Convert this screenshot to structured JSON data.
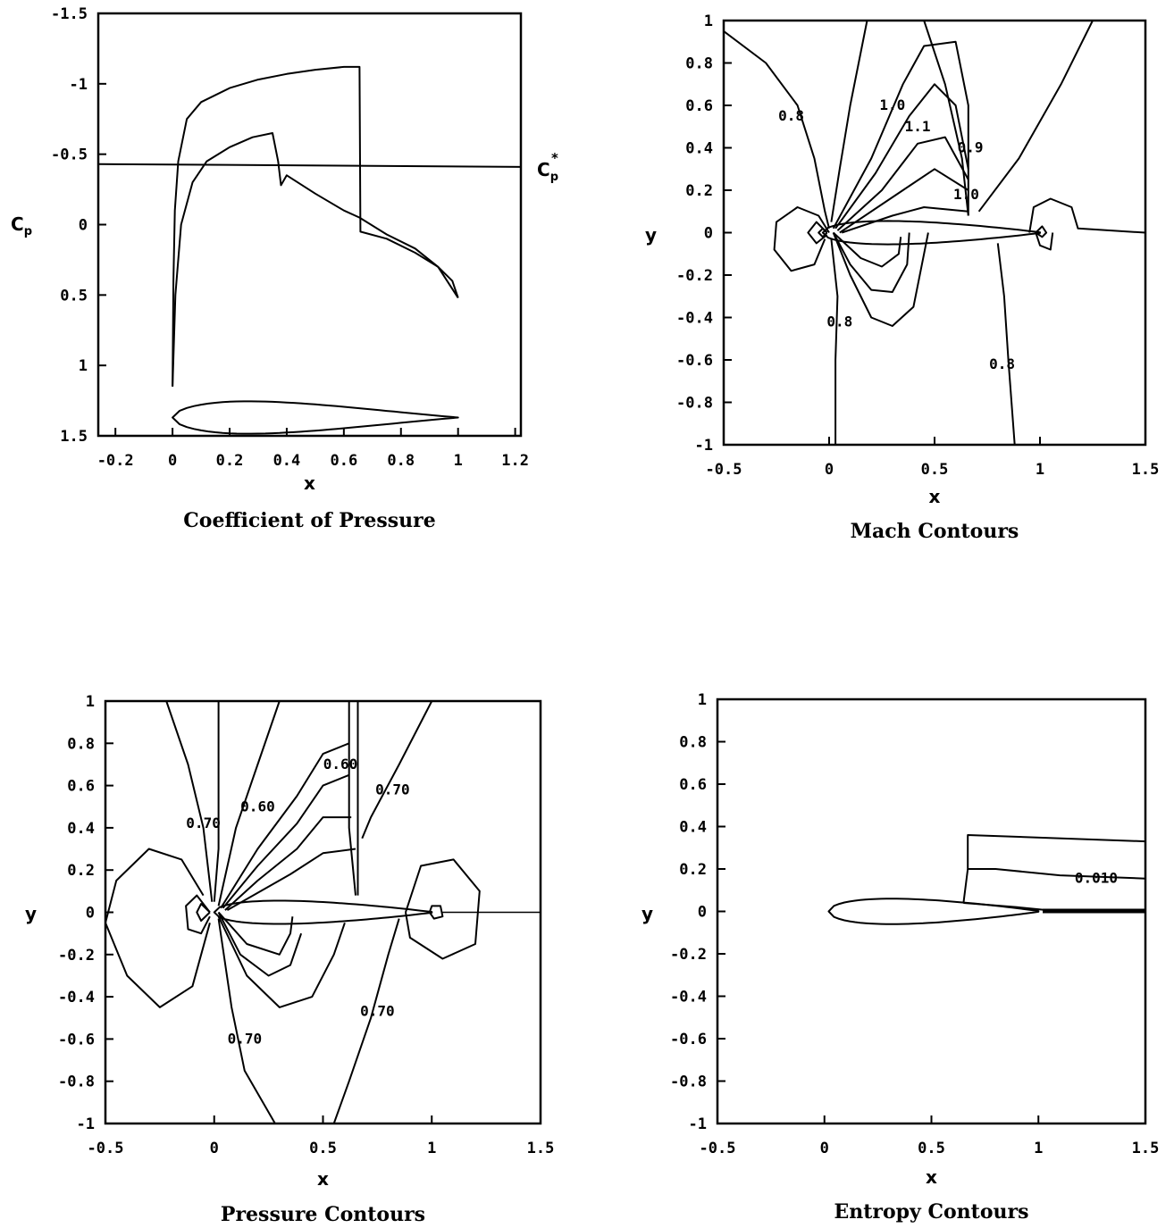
{
  "chart_data": [
    {
      "type": "line",
      "title": "Coefficient of Pressure",
      "xlabel": "x",
      "ylabel": "C",
      "ylabel_sub": "p",
      "xlim": [
        -0.26,
        1.22
      ],
      "ylim": [
        1.5,
        -1.5
      ],
      "xticks": [
        "-0.2",
        "0",
        "0.2",
        "0.4",
        "0.6",
        "0.8",
        "1",
        "1.2"
      ],
      "xtick_values": [
        -0.2,
        0,
        0.2,
        0.4,
        0.6,
        0.8,
        1,
        1.2
      ],
      "yticks": [
        "-1.5",
        "-1",
        "-0.5",
        "0",
        "0.5",
        "1",
        "1.5"
      ],
      "ytick_values": [
        -1.5,
        -1,
        -0.5,
        0,
        0.5,
        1,
        1.5
      ],
      "reference_line": {
        "label": "C",
        "label_sub": "p",
        "label_sup": "*",
        "y_start": -0.43,
        "y_end": -0.41
      },
      "series": [
        {
          "x": [
            0.0,
            0.003,
            0.008,
            0.02,
            0.05,
            0.1,
            0.2,
            0.3,
            0.4,
            0.5,
            0.6,
            0.655,
            0.658,
            0.75,
            0.85,
            0.93,
            0.98,
            1.0
          ],
          "y": [
            1.15,
            0.4,
            -0.1,
            -0.45,
            -0.75,
            -0.87,
            -0.97,
            -1.03,
            -1.07,
            -1.1,
            -1.12,
            -1.12,
            0.05,
            0.1,
            0.2,
            0.3,
            0.4,
            0.52
          ]
        },
        {
          "x": [
            0.0,
            0.01,
            0.03,
            0.07,
            0.12,
            0.2,
            0.28,
            0.35,
            0.37,
            0.38,
            0.4,
            0.5,
            0.6,
            0.655,
            0.75,
            0.85,
            0.93,
            1.0
          ],
          "y": [
            1.15,
            0.5,
            0.0,
            -0.3,
            -0.45,
            -0.55,
            -0.62,
            -0.65,
            -0.45,
            -0.28,
            -0.35,
            -0.22,
            -0.1,
            -0.05,
            0.07,
            0.17,
            0.3,
            0.52
          ]
        }
      ],
      "airfoil_inset": {
        "x_le": 0.0,
        "x_te": 1.0,
        "y_center": 1.37,
        "half_thickness": 0.12
      }
    },
    {
      "type": "contour",
      "title": "Mach Contours",
      "xlabel": "x",
      "ylabel": "y",
      "xlim": [
        -0.5,
        1.5
      ],
      "ylim": [
        -1,
        1
      ],
      "xticks": [
        "-0.5",
        "0",
        "0.5",
        "1",
        "1.5"
      ],
      "xtick_values": [
        -0.5,
        0,
        0.5,
        1,
        1.5
      ],
      "yticks": [
        "1",
        "0.8",
        "0.6",
        "0.4",
        "0.2",
        "0",
        "-0.2",
        "-0.4",
        "-0.6",
        "-0.8",
        "-1"
      ],
      "ytick_values": [
        1,
        0.8,
        0.6,
        0.4,
        0.2,
        0,
        -0.2,
        -0.4,
        -0.6,
        -0.8,
        -1
      ],
      "contour_labels": [
        {
          "text": "0.8",
          "x": -0.18,
          "y": 0.55
        },
        {
          "text": "1.0",
          "x": 0.3,
          "y": 0.6
        },
        {
          "text": "1.1",
          "x": 0.42,
          "y": 0.5
        },
        {
          "text": "0.9",
          "x": 0.67,
          "y": 0.4
        },
        {
          "text": "1.0",
          "x": 0.65,
          "y": 0.18
        },
        {
          "text": "0.8",
          "x": 0.05,
          "y": -0.42
        },
        {
          "text": "0.8",
          "x": 0.82,
          "y": -0.62
        }
      ]
    },
    {
      "type": "contour",
      "title": "Pressure Contours",
      "xlabel": "x",
      "ylabel": "y",
      "xlim": [
        -0.5,
        1.5
      ],
      "ylim": [
        -1,
        1
      ],
      "xticks": [
        "-0.5",
        "0",
        "0.5",
        "1",
        "1.5"
      ],
      "xtick_values": [
        -0.5,
        0,
        0.5,
        1,
        1.5
      ],
      "yticks": [
        "1",
        "0.8",
        "0.6",
        "0.4",
        "0.2",
        "0",
        "-0.2",
        "-0.4",
        "-0.6",
        "-0.8",
        "-1"
      ],
      "ytick_values": [
        1,
        0.8,
        0.6,
        0.4,
        0.2,
        0,
        -0.2,
        -0.4,
        -0.6,
        -0.8,
        -1
      ],
      "contour_labels": [
        {
          "text": "0.70",
          "x": -0.05,
          "y": 0.42
        },
        {
          "text": "0.60",
          "x": 0.2,
          "y": 0.5
        },
        {
          "text": "0.60",
          "x": 0.58,
          "y": 0.7
        },
        {
          "text": "0.70",
          "x": 0.82,
          "y": 0.58
        },
        {
          "text": "0.70",
          "x": 0.14,
          "y": -0.6
        },
        {
          "text": "0.70",
          "x": 0.75,
          "y": -0.47
        }
      ]
    },
    {
      "type": "contour",
      "title": "Entropy Contours",
      "xlabel": "x",
      "ylabel": "y",
      "xlim": [
        -0.5,
        1.5
      ],
      "ylim": [
        -1,
        1
      ],
      "xticks": [
        "-0.5",
        "0",
        "0.5",
        "1",
        "1.5"
      ],
      "xtick_values": [
        -0.5,
        0,
        0.5,
        1,
        1.5
      ],
      "yticks": [
        "1",
        "0.8",
        "0.6",
        "0.4",
        "0.2",
        "0",
        "-0.2",
        "-0.4",
        "-0.6",
        "-0.8",
        "-1"
      ],
      "ytick_values": [
        1,
        0.8,
        0.6,
        0.4,
        0.2,
        0,
        -0.2,
        -0.4,
        -0.6,
        -0.8,
        -1
      ],
      "contour_labels": [
        {
          "text": "0.010",
          "x": 1.27,
          "y": 0.155
        }
      ]
    }
  ]
}
